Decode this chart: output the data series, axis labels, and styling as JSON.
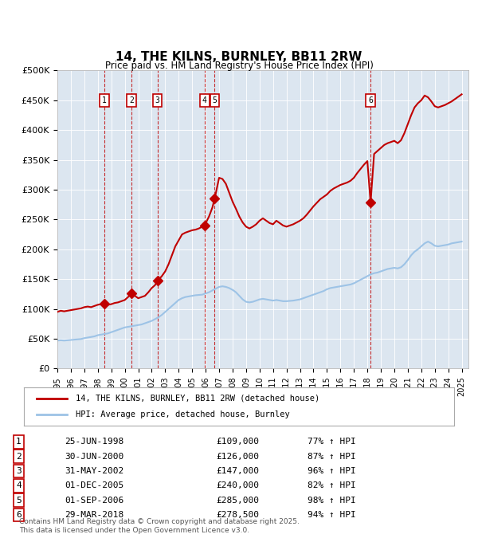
{
  "title": "14, THE KILNS, BURNLEY, BB11 2RW",
  "subtitle": "Price paid vs. HM Land Registry's House Price Index (HPI)",
  "footer": "Contains HM Land Registry data © Crown copyright and database right 2025.\nThis data is licensed under the Open Government Licence v3.0.",
  "legend_line1": "14, THE KILNS, BURNLEY, BB11 2RW (detached house)",
  "legend_line2": "HPI: Average price, detached house, Burnley",
  "ylim": [
    0,
    500000
  ],
  "yticks": [
    0,
    50000,
    100000,
    150000,
    200000,
    250000,
    300000,
    350000,
    400000,
    450000,
    500000
  ],
  "ytick_labels": [
    "£0",
    "£50K",
    "£100K",
    "£150K",
    "£200K",
    "£250K",
    "£300K",
    "£350K",
    "£400K",
    "£450K",
    "£500K"
  ],
  "bg_color": "#dce6f0",
  "plot_bg": "#dce6f0",
  "red_color": "#c00000",
  "blue_color": "#9dc3e6",
  "marker_color": "#c00000",
  "sales": [
    {
      "num": 1,
      "date": "25-JUN-1998",
      "price": 109000,
      "pct": "77%",
      "year": 1998.49
    },
    {
      "num": 2,
      "date": "30-JUN-2000",
      "price": 126000,
      "pct": "87%",
      "year": 2000.5
    },
    {
      "num": 3,
      "date": "31-MAY-2002",
      "price": 147000,
      "pct": "96%",
      "year": 2002.42
    },
    {
      "num": 4,
      "date": "01-DEC-2005",
      "price": 240000,
      "pct": "82%",
      "year": 2005.92
    },
    {
      "num": 5,
      "date": "01-SEP-2006",
      "price": 285000,
      "pct": "98%",
      "year": 2006.67
    },
    {
      "num": 6,
      "date": "29-MAR-2018",
      "price": 278500,
      "pct": "94%",
      "year": 2018.24
    }
  ],
  "hpi_x": [
    1995.0,
    1995.25,
    1995.5,
    1995.75,
    1996.0,
    1996.25,
    1996.5,
    1996.75,
    1997.0,
    1997.25,
    1997.5,
    1997.75,
    1998.0,
    1998.25,
    1998.5,
    1998.75,
    1999.0,
    1999.25,
    1999.5,
    1999.75,
    2000.0,
    2000.25,
    2000.5,
    2000.75,
    2001.0,
    2001.25,
    2001.5,
    2001.75,
    2002.0,
    2002.25,
    2002.5,
    2002.75,
    2003.0,
    2003.25,
    2003.5,
    2003.75,
    2004.0,
    2004.25,
    2004.5,
    2004.75,
    2005.0,
    2005.25,
    2005.5,
    2005.75,
    2006.0,
    2006.25,
    2006.5,
    2006.75,
    2007.0,
    2007.25,
    2007.5,
    2007.75,
    2008.0,
    2008.25,
    2008.5,
    2008.75,
    2009.0,
    2009.25,
    2009.5,
    2009.75,
    2010.0,
    2010.25,
    2010.5,
    2010.75,
    2011.0,
    2011.25,
    2011.5,
    2011.75,
    2012.0,
    2012.25,
    2012.5,
    2012.75,
    2013.0,
    2013.25,
    2013.5,
    2013.75,
    2014.0,
    2014.25,
    2014.5,
    2014.75,
    2015.0,
    2015.25,
    2015.5,
    2015.75,
    2016.0,
    2016.25,
    2016.5,
    2016.75,
    2017.0,
    2017.25,
    2017.5,
    2017.75,
    2018.0,
    2018.25,
    2018.5,
    2018.75,
    2019.0,
    2019.25,
    2019.5,
    2019.75,
    2020.0,
    2020.25,
    2020.5,
    2020.75,
    2021.0,
    2021.25,
    2021.5,
    2021.75,
    2022.0,
    2022.25,
    2022.5,
    2022.75,
    2023.0,
    2023.25,
    2023.5,
    2023.75,
    2024.0,
    2024.25,
    2024.5,
    2024.75,
    2025.0
  ],
  "hpi_y": [
    47000,
    47500,
    47000,
    47500,
    48000,
    48500,
    49000,
    49500,
    51000,
    52000,
    53000,
    54000,
    56000,
    57000,
    58000,
    59000,
    61000,
    63000,
    65000,
    67000,
    69000,
    70000,
    71000,
    72000,
    73000,
    74000,
    76000,
    78000,
    80000,
    83000,
    86000,
    90000,
    95000,
    100000,
    105000,
    110000,
    115000,
    118000,
    120000,
    121000,
    122000,
    123000,
    123500,
    124000,
    126000,
    128000,
    131000,
    134000,
    137000,
    138000,
    137000,
    135000,
    132000,
    128000,
    122000,
    116000,
    112000,
    111000,
    112000,
    114000,
    116000,
    117000,
    116000,
    115000,
    114000,
    115000,
    114000,
    113000,
    113000,
    113500,
    114000,
    115000,
    116000,
    118000,
    120000,
    122000,
    124000,
    126000,
    128000,
    130000,
    133000,
    135000,
    136000,
    137000,
    138000,
    139000,
    140000,
    141000,
    143000,
    146000,
    149000,
    152000,
    155000,
    158000,
    160000,
    161000,
    163000,
    165000,
    167000,
    168000,
    169000,
    168000,
    170000,
    175000,
    182000,
    190000,
    196000,
    200000,
    205000,
    210000,
    213000,
    210000,
    206000,
    205000,
    206000,
    207000,
    208000,
    210000,
    211000,
    212000,
    213000
  ],
  "red_x": [
    1995.0,
    1995.25,
    1995.5,
    1995.75,
    1996.0,
    1996.25,
    1996.5,
    1996.75,
    1997.0,
    1997.25,
    1997.5,
    1997.75,
    1998.0,
    1998.25,
    1998.49,
    1998.75,
    1999.0,
    1999.25,
    1999.5,
    1999.75,
    2000.0,
    2000.25,
    2000.5,
    2000.75,
    2001.0,
    2001.25,
    2001.5,
    2001.75,
    2002.0,
    2002.25,
    2002.42,
    2002.75,
    2003.0,
    2003.25,
    2003.5,
    2003.75,
    2004.0,
    2004.25,
    2004.5,
    2004.75,
    2005.0,
    2005.25,
    2005.5,
    2005.75,
    2005.92,
    2006.25,
    2006.5,
    2006.67,
    2007.0,
    2007.25,
    2007.5,
    2007.75,
    2008.0,
    2008.25,
    2008.5,
    2008.75,
    2009.0,
    2009.25,
    2009.5,
    2009.75,
    2010.0,
    2010.25,
    2010.5,
    2010.75,
    2011.0,
    2011.25,
    2011.5,
    2011.75,
    2012.0,
    2012.25,
    2012.5,
    2012.75,
    2013.0,
    2013.25,
    2013.5,
    2013.75,
    2014.0,
    2014.25,
    2014.5,
    2014.75,
    2015.0,
    2015.25,
    2015.5,
    2015.75,
    2016.0,
    2016.25,
    2016.5,
    2016.75,
    2017.0,
    2017.25,
    2017.5,
    2017.75,
    2018.0,
    2018.24,
    2018.5,
    2018.75,
    2019.0,
    2019.25,
    2019.5,
    2019.75,
    2020.0,
    2020.25,
    2020.5,
    2020.75,
    2021.0,
    2021.25,
    2021.5,
    2021.75,
    2022.0,
    2022.25,
    2022.5,
    2022.75,
    2023.0,
    2023.25,
    2023.5,
    2023.75,
    2024.0,
    2024.25,
    2024.5,
    2024.75,
    2025.0
  ],
  "red_y": [
    95000,
    97000,
    96000,
    97000,
    98000,
    99000,
    100000,
    101000,
    103000,
    104000,
    103000,
    105000,
    107000,
    108000,
    109000,
    107000,
    108000,
    110000,
    111000,
    113000,
    115000,
    120000,
    126000,
    122000,
    118000,
    120000,
    122000,
    128000,
    135000,
    140000,
    147000,
    155000,
    163000,
    175000,
    190000,
    205000,
    215000,
    225000,
    228000,
    230000,
    232000,
    233000,
    235000,
    238000,
    240000,
    255000,
    270000,
    285000,
    320000,
    318000,
    310000,
    295000,
    280000,
    268000,
    255000,
    245000,
    238000,
    235000,
    238000,
    242000,
    248000,
    252000,
    248000,
    244000,
    242000,
    248000,
    244000,
    240000,
    238000,
    240000,
    242000,
    245000,
    248000,
    252000,
    258000,
    265000,
    272000,
    278000,
    284000,
    288000,
    292000,
    298000,
    302000,
    305000,
    308000,
    310000,
    312000,
    315000,
    320000,
    328000,
    335000,
    342000,
    348000,
    278500,
    360000,
    365000,
    370000,
    375000,
    378000,
    380000,
    382000,
    378000,
    383000,
    395000,
    410000,
    425000,
    438000,
    445000,
    450000,
    458000,
    455000,
    448000,
    440000,
    438000,
    440000,
    442000,
    445000,
    448000,
    452000,
    456000,
    460000
  ]
}
